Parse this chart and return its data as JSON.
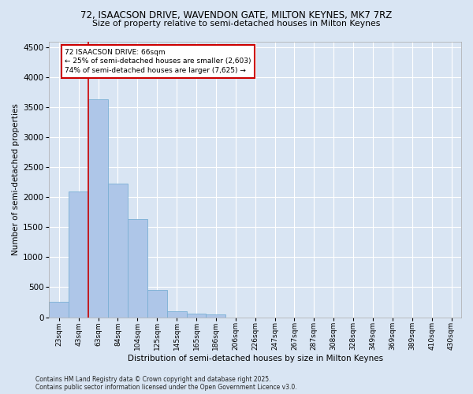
{
  "title1": "72, ISAACSON DRIVE, WAVENDON GATE, MILTON KEYNES, MK7 7RZ",
  "title2": "Size of property relative to semi-detached houses in Milton Keynes",
  "xlabel": "Distribution of semi-detached houses by size in Milton Keynes",
  "ylabel": "Number of semi-detached properties",
  "categories": [
    "23sqm",
    "43sqm",
    "63sqm",
    "84sqm",
    "104sqm",
    "125sqm",
    "145sqm",
    "165sqm",
    "186sqm",
    "206sqm",
    "226sqm",
    "247sqm",
    "267sqm",
    "287sqm",
    "308sqm",
    "328sqm",
    "349sqm",
    "369sqm",
    "389sqm",
    "410sqm",
    "430sqm"
  ],
  "values": [
    260,
    2100,
    3630,
    2230,
    1630,
    450,
    105,
    55,
    50,
    0,
    0,
    0,
    0,
    0,
    0,
    0,
    0,
    0,
    0,
    0,
    0
  ],
  "bar_color": "#aec6e8",
  "bar_edgecolor": "#7aafd4",
  "property_label": "72 ISAACSON DRIVE: 66sqm",
  "pct_smaller": 25,
  "pct_larger": 74,
  "count_smaller": 2603,
  "count_larger": 7625,
  "vline_bin": 2,
  "ylim": [
    0,
    4600
  ],
  "yticks": [
    0,
    500,
    1000,
    1500,
    2000,
    2500,
    3000,
    3500,
    4000,
    4500
  ],
  "bg_color": "#d9e5f3",
  "plot_bg_color": "#d9e5f3",
  "annotation_box_facecolor": "#ffffff",
  "annotation_box_edgecolor": "#cc0000",
  "vline_color": "#cc0000",
  "grid_color": "#ffffff",
  "footnote": "Contains HM Land Registry data © Crown copyright and database right 2025.\nContains public sector information licensed under the Open Government Licence v3.0."
}
